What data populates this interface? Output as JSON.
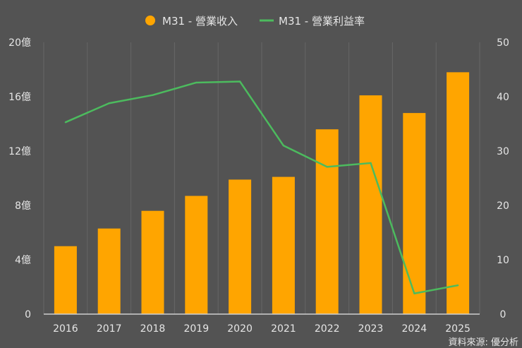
{
  "chart_data": {
    "type": "bar+line",
    "categories": [
      "2016",
      "2017",
      "2018",
      "2019",
      "2020",
      "2021",
      "2022",
      "2023",
      "2024",
      "2025"
    ],
    "series": [
      {
        "name": "M31 - 營業收入",
        "type": "bar",
        "axis": "left",
        "color": "#FFA500",
        "values": [
          5.0,
          6.3,
          7.6,
          8.7,
          9.9,
          10.1,
          13.6,
          16.1,
          14.8,
          17.8
        ]
      },
      {
        "name": "M31 - 營業利益率",
        "type": "line",
        "axis": "right",
        "color": "#4CBB5E",
        "values": [
          35.3,
          38.8,
          40.3,
          42.6,
          42.8,
          31.0,
          27.1,
          27.8,
          3.8,
          5.3
        ]
      }
    ],
    "left_axis": {
      "ylim": [
        0,
        20
      ],
      "ticks": [
        "0",
        "4億",
        "8億",
        "12億",
        "16億",
        "20億"
      ],
      "tick_values": [
        0,
        4,
        8,
        12,
        16,
        20
      ]
    },
    "right_axis": {
      "ylim": [
        0,
        50
      ],
      "ticks": [
        "0",
        "10",
        "20",
        "30",
        "40",
        "50"
      ],
      "tick_values": [
        0,
        10,
        20,
        30,
        40,
        50
      ]
    },
    "legend_position": "top-center",
    "source": "資料來源: 優分析"
  }
}
